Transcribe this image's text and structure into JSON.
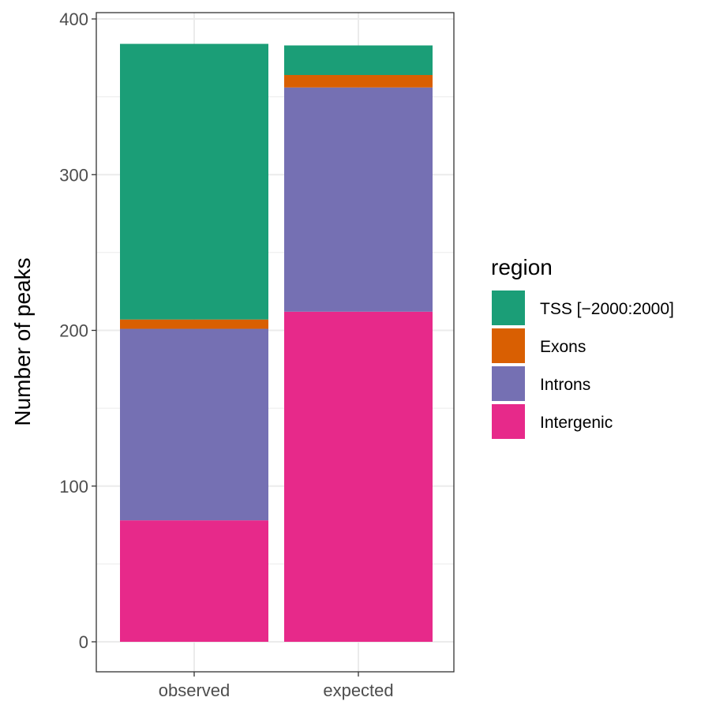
{
  "chart_data": {
    "type": "bar",
    "stacked": true,
    "categories": [
      "observed",
      "expected"
    ],
    "series": [
      {
        "name": "Intergenic",
        "values": [
          78,
          212
        ],
        "color": "#E7298A"
      },
      {
        "name": "Introns",
        "values": [
          123,
          144
        ],
        "color": "#7570B3"
      },
      {
        "name": "Exons",
        "values": [
          6,
          8
        ],
        "color": "#D95F02"
      },
      {
        "name": "TSS [−2000:2000]",
        "values": [
          177,
          19
        ],
        "color": "#1B9E77"
      }
    ],
    "legend_order": [
      "TSS [−2000:2000]",
      "Exons",
      "Introns",
      "Intergenic"
    ],
    "title": "",
    "xlabel": "",
    "ylabel": "Number of peaks",
    "ylim": [
      0,
      400
    ],
    "yticks": [
      0,
      100,
      200,
      300,
      400
    ],
    "grid": true,
    "legend": {
      "title": "region",
      "position": "right"
    }
  }
}
